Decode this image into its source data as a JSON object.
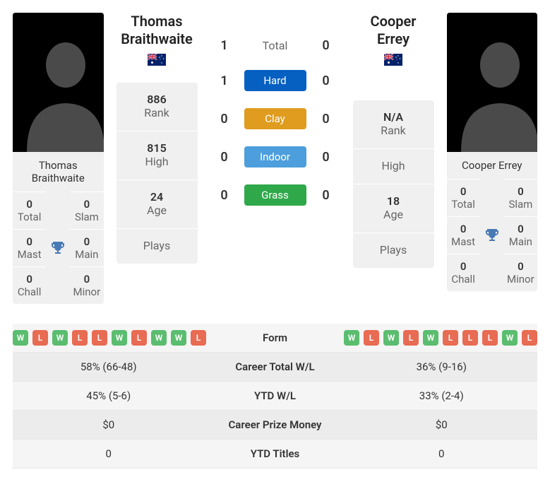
{
  "player1": {
    "name_line1": "Thomas",
    "name_line2": "Braithwaite",
    "card_name": "Thomas Braithwaite",
    "flag": "AU",
    "rank": "886",
    "high": "815",
    "age": "24",
    "plays": "",
    "titles": {
      "total": "0",
      "slam": "0",
      "mast": "0",
      "main": "0",
      "chall": "0",
      "minor": "0"
    }
  },
  "player2": {
    "name_line1": "Cooper Errey",
    "name_line2": "",
    "card_name": "Cooper Errey",
    "flag": "AU",
    "rank": "N/A",
    "high": "",
    "age": "18",
    "plays": "",
    "titles": {
      "total": "0",
      "slam": "0",
      "mast": "0",
      "main": "0",
      "chall": "0",
      "minor": "0"
    }
  },
  "h2h": {
    "total_label": "Total",
    "total": {
      "p1": "1",
      "p2": "0"
    },
    "hard": {
      "label": "Hard",
      "p1": "1",
      "p2": "0",
      "color": "#0560c2"
    },
    "clay": {
      "label": "Clay",
      "p1": "0",
      "p2": "0",
      "color": "#e09c1e"
    },
    "indoor": {
      "label": "Indoor",
      "p1": "0",
      "p2": "0",
      "color": "#4d9edc"
    },
    "grass": {
      "label": "Grass",
      "p1": "0",
      "p2": "0",
      "color": "#2fa84a"
    }
  },
  "labels": {
    "rank": "Rank",
    "high": "High",
    "age": "Age",
    "plays": "Plays",
    "total": "Total",
    "slam": "Slam",
    "mast": "Mast",
    "main": "Main",
    "chall": "Chall",
    "minor": "Minor",
    "form": "Form",
    "career_wl": "Career Total W/L",
    "ytd_wl": "YTD W/L",
    "prize": "Career Prize Money",
    "ytd_titles": "YTD Titles"
  },
  "form": {
    "p1": [
      "W",
      "L",
      "W",
      "L",
      "L",
      "W",
      "L",
      "W",
      "W",
      "L"
    ],
    "p2": [
      "W",
      "L",
      "W",
      "L",
      "W",
      "L",
      "L",
      "L",
      "W",
      "L"
    ]
  },
  "stats": {
    "career_wl": {
      "p1": "58% (66-48)",
      "p2": "36% (9-16)"
    },
    "ytd_wl": {
      "p1": "45% (5-6)",
      "p2": "33% (2-4)"
    },
    "prize": {
      "p1": "$0",
      "p2": "$0"
    },
    "ytd_titles": {
      "p1": "0",
      "p2": "0"
    }
  },
  "colors": {
    "win_chip": "#5bbd6f",
    "loss_chip": "#e86b53",
    "trophy": "#4a7ab5"
  }
}
